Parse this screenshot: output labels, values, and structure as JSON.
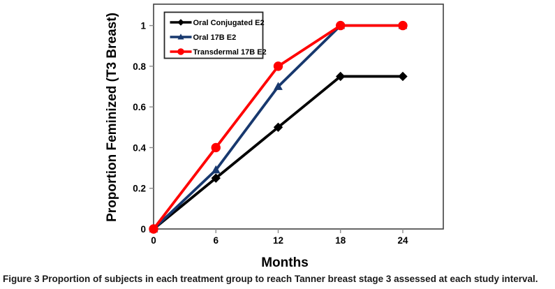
{
  "caption": {
    "label": "Figure 3",
    "text": "Proportion of subjects in each treatment group to reach Tanner breast stage 3 assessed at each study interval."
  },
  "chart_data": {
    "type": "line",
    "title": "",
    "xlabel": "Months",
    "ylabel": "Proportion Feminized (T3 Breast)",
    "x": [
      0,
      6,
      12,
      18,
      24
    ],
    "xticks": [
      0,
      6,
      12,
      18,
      24
    ],
    "xtick_labels": [
      "0",
      "6",
      "12",
      "18",
      "24"
    ],
    "yticks": [
      0,
      0.2,
      0.4,
      0.6,
      0.8,
      1
    ],
    "ytick_labels": [
      "0",
      "0.2",
      "0.4",
      "0.6",
      "0.8",
      "1"
    ],
    "xlim": [
      0,
      27.9
    ],
    "ylim": [
      0,
      1.105
    ],
    "grid": false,
    "legend_position": "top-left-inside",
    "series": [
      {
        "name": "Oral Conjugated E2",
        "color": "#000000",
        "marker": "diamond",
        "values": [
          0,
          0.25,
          0.5,
          0.75,
          0.75
        ]
      },
      {
        "name": "Oral 17B E2",
        "color": "#17386E",
        "marker": "triangle",
        "values": [
          0,
          0.29,
          0.7,
          1,
          1
        ]
      },
      {
        "name": "Transdermal 17B E2",
        "color": "#FF0000",
        "marker": "circle",
        "values": [
          0,
          0.4,
          0.8,
          1,
          1
        ]
      }
    ],
    "colors": {
      "frame": "#404040",
      "tick": "#8c8c8c",
      "legend_border": "#262626",
      "background": "#ffffff"
    }
  }
}
